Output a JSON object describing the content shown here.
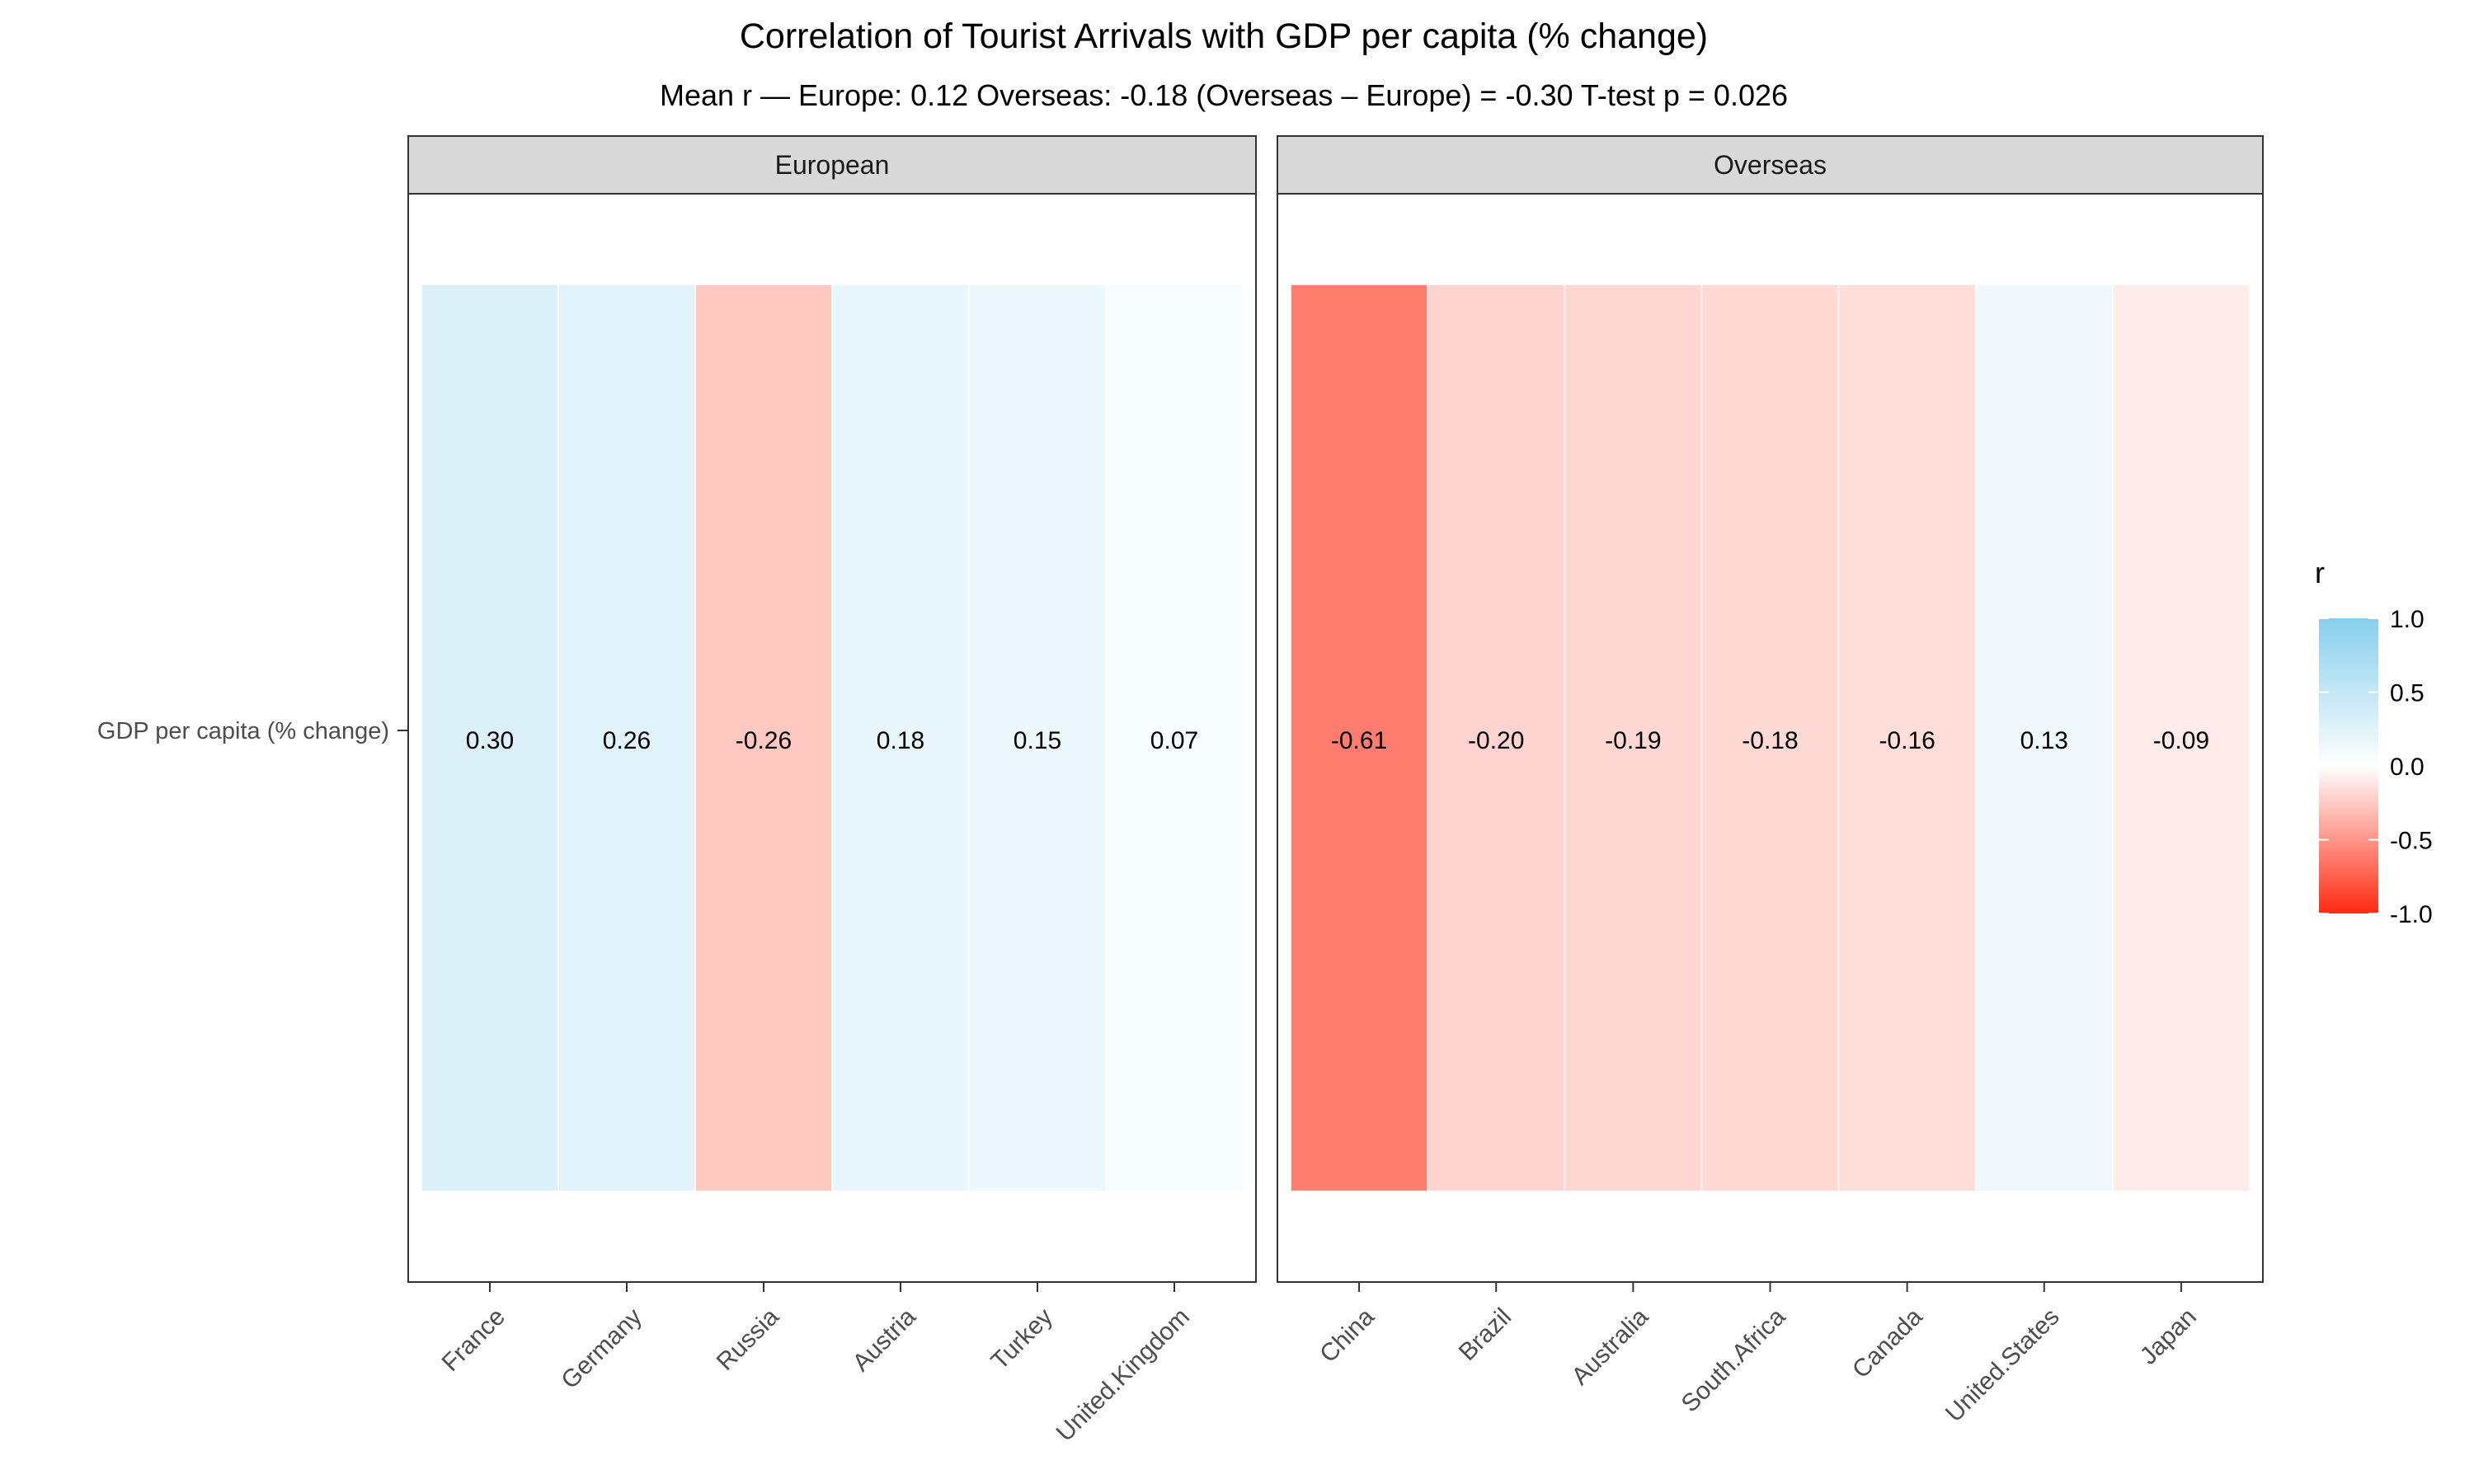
{
  "chart_data": {
    "type": "heatmap",
    "title": "Correlation of Tourist Arrivals with GDP per capita (% change)",
    "subtitle": "Mean r — Europe: 0.12  Overseas: -0.18   (Overseas – Europe) = -0.30   T-test p = 0.026",
    "row_label": "GDP per capita (% change)",
    "panels": [
      {
        "name": "European",
        "categories": [
          "France",
          "Germany",
          "Russia",
          "Austria",
          "Turkey",
          "United.Kingdom"
        ],
        "values": [
          0.3,
          0.26,
          -0.26,
          0.18,
          0.15,
          0.07
        ],
        "labels": [
          "0.30",
          "0.26",
          "-0.26",
          "0.18",
          "0.15",
          "0.07"
        ]
      },
      {
        "name": "Overseas",
        "categories": [
          "China",
          "Brazil",
          "Australia",
          "South.Africa",
          "Canada",
          "United.States",
          "Japan"
        ],
        "values": [
          -0.61,
          -0.2,
          -0.19,
          -0.18,
          -0.16,
          0.13,
          -0.09
        ],
        "labels": [
          "-0.61",
          "-0.20",
          "-0.19",
          "-0.18",
          "-0.16",
          "0.13",
          "-0.09"
        ]
      }
    ],
    "legend": {
      "title": "r",
      "ticks": [
        "1.0",
        "0.5",
        "0.0",
        "-0.5",
        "-1.0"
      ],
      "tick_values": [
        1.0,
        0.5,
        0.0,
        -0.5,
        -1.0
      ],
      "range": [
        -1,
        1
      ],
      "position": "right"
    },
    "colors": {
      "low": "#ff2a12",
      "mid": "#ffffff",
      "high": "#87ceeb",
      "strip_fill": "#d9d9d9",
      "panel_border": "#333333"
    }
  }
}
